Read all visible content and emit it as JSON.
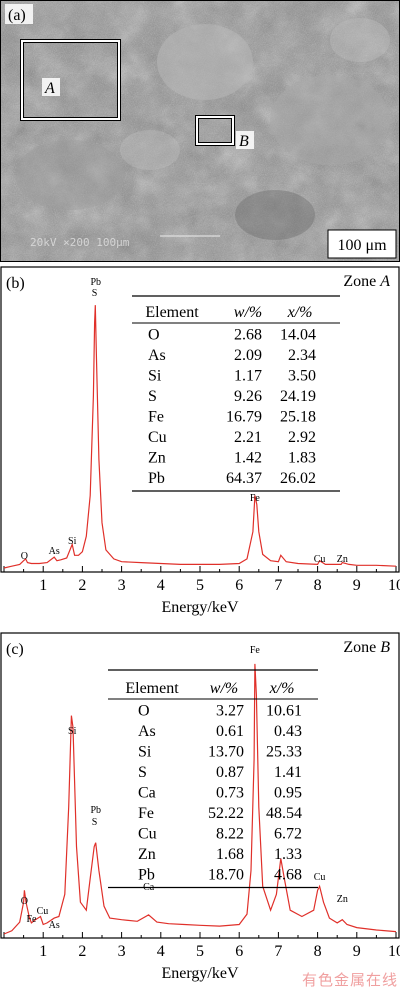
{
  "figure": {
    "panel_a": {
      "label": "(a)",
      "zone_a_label": "A",
      "zone_b_label": "B",
      "scale_bar": "100 μm",
      "sem_text": "20kV   ×200   100μm"
    },
    "watermark": "有色金属在线"
  },
  "chart_data": [
    {
      "type": "line",
      "panel_label": "(b)",
      "zone_label": "Zone",
      "zone_letter": "A",
      "xlabel": "Energy/keV",
      "ylabel": "",
      "xlim": [
        0,
        10
      ],
      "x_ticks": [
        "1",
        "2",
        "3",
        "4",
        "5",
        "6",
        "7",
        "8",
        "9",
        "10"
      ],
      "grid": false,
      "series": [
        {
          "color": "#e0302a",
          "x": [
            0.0,
            0.2,
            0.4,
            0.5,
            0.55,
            0.6,
            0.7,
            0.9,
            1.1,
            1.28,
            1.35,
            1.45,
            1.6,
            1.74,
            1.8,
            1.9,
            2.0,
            2.1,
            2.2,
            2.28,
            2.31,
            2.33,
            2.36,
            2.42,
            2.5,
            2.6,
            2.8,
            3.0,
            3.5,
            4.0,
            4.5,
            5.0,
            5.5,
            6.0,
            6.2,
            6.35,
            6.4,
            6.45,
            6.5,
            6.6,
            6.8,
            7.0,
            7.06,
            7.2,
            7.5,
            8.0,
            8.05,
            8.2,
            8.6,
            8.63,
            8.8,
            9.0,
            9.5,
            10.0
          ],
          "y": [
            0,
            2,
            4,
            8,
            10,
            6,
            5,
            5,
            6,
            12,
            8,
            9,
            11,
            26,
            14,
            14,
            18,
            35,
            80,
            190,
            270,
            290,
            230,
            120,
            50,
            20,
            10,
            7,
            6,
            5,
            4,
            4,
            4,
            5,
            10,
            40,
            80,
            70,
            40,
            15,
            8,
            7,
            14,
            7,
            5,
            4,
            8,
            4,
            4,
            6,
            4,
            3,
            3,
            2
          ]
        }
      ],
      "peaks": [
        {
          "label": "O",
          "x": 0.52
        },
        {
          "label": "As",
          "x": 1.28
        },
        {
          "label": "Si",
          "x": 1.74
        },
        {
          "label": "Pb",
          "x": 2.34
        },
        {
          "label": "S",
          "x": 2.31
        },
        {
          "label": "Fe",
          "x": 6.4
        },
        {
          "label": "Cu",
          "x": 8.05
        },
        {
          "label": "Zn",
          "x": 8.63
        }
      ],
      "table": {
        "headers": [
          "Element",
          "w/%",
          "x/%"
        ],
        "rows": [
          [
            "O",
            "2.68",
            "14.04"
          ],
          [
            "As",
            "2.09",
            "2.34"
          ],
          [
            "Si",
            "1.17",
            "3.50"
          ],
          [
            "S",
            "9.26",
            "24.19"
          ],
          [
            "Fe",
            "16.79",
            "25.18"
          ],
          [
            "Cu",
            "2.21",
            "2.92"
          ],
          [
            "Zn",
            "1.42",
            "1.83"
          ],
          [
            "Pb",
            "64.37",
            "26.02"
          ]
        ]
      }
    },
    {
      "type": "line",
      "panel_label": "(c)",
      "zone_label": "Zone",
      "zone_letter": "B",
      "xlabel": "Energy/keV",
      "ylabel": "",
      "xlim": [
        0,
        10
      ],
      "x_ticks": [
        "1",
        "2",
        "3",
        "4",
        "5",
        "6",
        "7",
        "8",
        "9",
        "10"
      ],
      "grid": false,
      "series": [
        {
          "color": "#e0302a",
          "x": [
            0.0,
            0.2,
            0.4,
            0.5,
            0.52,
            0.56,
            0.65,
            0.7,
            0.8,
            0.93,
            1.0,
            1.1,
            1.28,
            1.4,
            1.55,
            1.65,
            1.72,
            1.76,
            1.85,
            1.95,
            2.1,
            2.2,
            2.3,
            2.34,
            2.42,
            2.55,
            2.7,
            3.0,
            3.4,
            3.69,
            3.9,
            4.2,
            4.6,
            5.0,
            5.5,
            6.0,
            6.2,
            6.3,
            6.38,
            6.4,
            6.44,
            6.5,
            6.6,
            6.8,
            6.95,
            7.06,
            7.15,
            7.3,
            7.6,
            7.9,
            8.0,
            8.05,
            8.15,
            8.3,
            8.5,
            8.63,
            8.75,
            9.0,
            9.5,
            10.0
          ],
          "y": [
            0,
            4,
            15,
            40,
            55,
            40,
            20,
            14,
            18,
            22,
            12,
            14,
            20,
            22,
            50,
            160,
            275,
            260,
            110,
            40,
            30,
            70,
            110,
            115,
            80,
            35,
            20,
            18,
            16,
            24,
            15,
            13,
            12,
            11,
            10,
            12,
            25,
            80,
            220,
            340,
            300,
            160,
            60,
            30,
            50,
            95,
            70,
            30,
            22,
            30,
            55,
            60,
            40,
            20,
            14,
            18,
            12,
            8,
            5,
            3
          ]
        }
      ],
      "peaks": [
        {
          "label": "O",
          "x": 0.52
        },
        {
          "label": "Fe",
          "x": 0.7
        },
        {
          "label": "Cu",
          "x": 0.93
        },
        {
          "label": "As",
          "x": 1.28
        },
        {
          "label": "Si",
          "x": 1.74
        },
        {
          "label": "Pb",
          "x": 2.34
        },
        {
          "label": "S",
          "x": 2.31
        },
        {
          "label": "Ca",
          "x": 3.69
        },
        {
          "label": "Fe",
          "x": 6.4
        },
        {
          "label": "Cu",
          "x": 8.05
        },
        {
          "label": "Zn",
          "x": 8.63
        }
      ],
      "table": {
        "headers": [
          "Element",
          "w/%",
          "x/%"
        ],
        "rows": [
          [
            "O",
            "3.27",
            "10.61"
          ],
          [
            "As",
            "0.61",
            "0.43"
          ],
          [
            "Si",
            "13.70",
            "25.33"
          ],
          [
            "S",
            "0.87",
            "1.41"
          ],
          [
            "Ca",
            "0.73",
            "0.95"
          ],
          [
            "Fe",
            "52.22",
            "48.54"
          ],
          [
            "Cu",
            "8.22",
            "6.72"
          ],
          [
            "Zn",
            "1.68",
            "1.33"
          ],
          [
            "Pb",
            "18.70",
            "4.68"
          ]
        ]
      }
    }
  ]
}
